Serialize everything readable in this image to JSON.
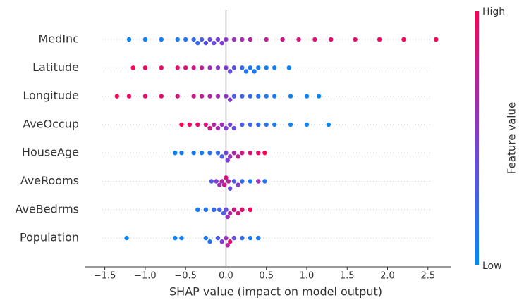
{
  "chart_data": {
    "type": "beeswarm",
    "xlabel": "SHAP value (impact on model output)",
    "xlim": [
      -1.75,
      2.79
    ],
    "xticks": [
      {
        "value": -1.5,
        "label": "−1.5"
      },
      {
        "value": -1.0,
        "label": "−1.0"
      },
      {
        "value": -0.5,
        "label": "−0.5"
      },
      {
        "value": 0.0,
        "label": "0.0"
      },
      {
        "value": 0.5,
        "label": "0.5"
      },
      {
        "value": 1.0,
        "label": "1.0"
      },
      {
        "value": 1.5,
        "label": "1.5"
      },
      {
        "value": 2.0,
        "label": "2.0"
      },
      {
        "value": 2.5,
        "label": "2.5"
      }
    ],
    "colormap": [
      "#008afb",
      "#7f3dd4",
      "#ff0052"
    ],
    "colorbar": {
      "title": "Feature value",
      "high": "High",
      "low": "Low"
    },
    "series": [
      {
        "name": "MedInc",
        "values": [
          -1.2,
          -1.0,
          -0.8,
          -0.6,
          -0.5,
          -0.4,
          -0.35,
          -0.3,
          -0.25,
          -0.2,
          -0.15,
          -0.1,
          -0.05,
          0,
          0.1,
          0.2,
          0.3,
          0.5,
          0.7,
          0.9,
          1.1,
          1.3,
          1.6,
          1.9,
          2.2,
          2.6
        ],
        "feature_values": [
          0.02,
          0.05,
          0.08,
          0.1,
          0.15,
          0.2,
          0.22,
          0.3,
          0.35,
          0.4,
          0.42,
          0.45,
          0.5,
          0.55,
          0.6,
          0.65,
          0.7,
          0.75,
          0.8,
          0.85,
          0.88,
          0.9,
          0.93,
          0.95,
          0.97,
          1
        ]
      },
      {
        "name": "Latitude",
        "values": [
          -1.15,
          -1.0,
          -0.8,
          -0.6,
          -0.5,
          -0.4,
          -0.3,
          -0.2,
          -0.1,
          0,
          0.05,
          0.1,
          0.2,
          0.25,
          0.3,
          0.35,
          0.4,
          0.5,
          0.6,
          0.78
        ],
        "feature_values": [
          1,
          0.95,
          0.9,
          0.9,
          0.85,
          0.8,
          0.75,
          0.6,
          0.55,
          0.5,
          0.4,
          0.35,
          0.2,
          0.15,
          0.1,
          0.12,
          0.1,
          0.08,
          0.05,
          0.02
        ]
      },
      {
        "name": "Longitude",
        "values": [
          -1.35,
          -1.2,
          -1.0,
          -0.8,
          -0.6,
          -0.4,
          -0.3,
          -0.2,
          -0.1,
          0,
          0.05,
          0.1,
          0.2,
          0.3,
          0.4,
          0.5,
          0.6,
          0.8,
          1.0,
          1.15
        ],
        "feature_values": [
          0.98,
          0.95,
          0.92,
          0.9,
          0.85,
          0.8,
          0.75,
          0.7,
          0.65,
          0.55,
          0.5,
          0.3,
          0.25,
          0.2,
          0.15,
          0.12,
          0.1,
          0.08,
          0.05,
          0.03
        ]
      },
      {
        "name": "AveOccup",
        "values": [
          -0.55,
          -0.45,
          -0.35,
          -0.25,
          -0.2,
          -0.15,
          -0.1,
          -0.05,
          0,
          0.05,
          0.1,
          0.2,
          0.3,
          0.4,
          0.5,
          0.6,
          0.8,
          1.0,
          1.27
        ],
        "feature_values": [
          1,
          0.95,
          0.9,
          0.85,
          0.8,
          0.7,
          0.65,
          0.6,
          0.5,
          0.45,
          0.4,
          0.3,
          0.25,
          0.2,
          0.15,
          0.1,
          0.08,
          0.05,
          0.02
        ]
      },
      {
        "name": "HouseAge",
        "values": [
          -0.63,
          -0.55,
          -0.4,
          -0.3,
          -0.2,
          -0.1,
          -0.05,
          0,
          0.02,
          0.05,
          0.1,
          0.15,
          0.2,
          0.3,
          0.4,
          0.48
        ],
        "feature_values": [
          0.05,
          0.08,
          0.1,
          0.1,
          0.15,
          0.2,
          0.3,
          0.45,
          0.5,
          0.6,
          0.7,
          0.75,
          0.8,
          0.85,
          0.9,
          1
        ]
      },
      {
        "name": "AveRooms",
        "values": [
          -0.18,
          -0.12,
          -0.08,
          -0.05,
          -0.02,
          0,
          0.03,
          0.05,
          0.1,
          0.15,
          0.2,
          0.3,
          0.4,
          0.48
        ],
        "feature_values": [
          0.3,
          0.5,
          0.6,
          0.7,
          0.8,
          0.85,
          0.7,
          0.4,
          0.3,
          0.5,
          0.2,
          0.1,
          0.6,
          0.15
        ]
      },
      {
        "name": "AveBedrms",
        "values": [
          -0.35,
          -0.25,
          -0.15,
          -0.08,
          -0.03,
          0,
          0.02,
          0.05,
          0.1,
          0.15,
          0.2,
          0.3
        ],
        "feature_values": [
          0.1,
          0.15,
          0.2,
          0.25,
          0.3,
          0.4,
          0.6,
          0.7,
          0.8,
          0.85,
          0.9,
          0.95
        ]
      },
      {
        "name": "Population",
        "values": [
          -1.23,
          -0.63,
          -0.55,
          -0.25,
          -0.2,
          -0.1,
          -0.05,
          0,
          0.02,
          0.05,
          0.1,
          0.2,
          0.3,
          0.4
        ],
        "feature_values": [
          0.02,
          0.05,
          0.05,
          0.1,
          0.15,
          0.3,
          0.5,
          0.6,
          0.7,
          0.9,
          0.4,
          0.2,
          0.1,
          0.1
        ]
      }
    ]
  }
}
